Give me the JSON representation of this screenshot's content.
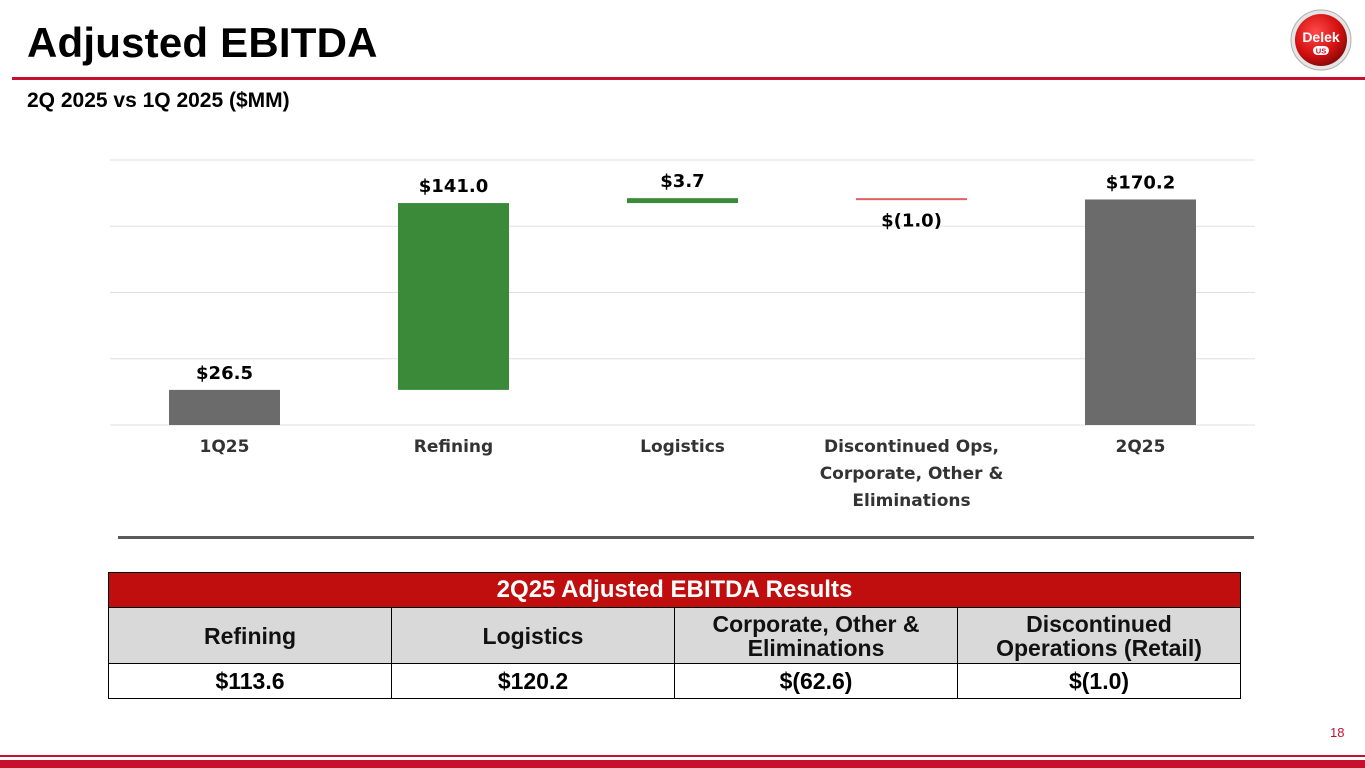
{
  "header": {
    "title": "Adjusted EBITDA",
    "subtitle": "2Q 2025 vs 1Q 2025 ($MM)",
    "logo_text": "Delek",
    "logo_subtext": "US"
  },
  "chart_data": {
    "type": "waterfall",
    "categories": [
      "1Q25",
      "Refining",
      "Logistics",
      "Discontinued Ops, Corporate, Other & Eliminations",
      "2Q25"
    ],
    "category_lines": [
      [
        "1Q25"
      ],
      [
        "Refining"
      ],
      [
        "Logistics"
      ],
      [
        "Discontinued Ops,",
        "Corporate, Other &",
        "Eliminations"
      ],
      [
        "2Q25"
      ]
    ],
    "values": [
      26.5,
      141.0,
      3.7,
      -1.0,
      170.2
    ],
    "kinds": [
      "total",
      "increase",
      "increase",
      "decrease",
      "total"
    ],
    "labels": [
      "$26.5",
      "$141.0",
      "$3.7",
      "$(1.0)",
      "$170.2"
    ],
    "ylim": [
      0,
      200
    ],
    "grid": true,
    "colors": {
      "total": "#6b6b6b",
      "increase": "#3a8a3a",
      "decrease": "#e06060"
    }
  },
  "results_table": {
    "title": "2Q25 Adjusted EBITDA Results",
    "columns": [
      {
        "heading": [
          "Refining"
        ],
        "value": "$113.6"
      },
      {
        "heading": [
          "Logistics"
        ],
        "value": "$120.2"
      },
      {
        "heading": [
          "Corporate, Other &",
          "Eliminations"
        ],
        "value": "$(62.6)"
      },
      {
        "heading": [
          "Discontinued",
          "Operations (Retail)"
        ],
        "value": "$(1.0)"
      }
    ]
  },
  "footer": {
    "page_number": "18"
  },
  "colors": {
    "brand_red": "#c8102e",
    "table_header": "#c00d0d",
    "table_subheader": "#d9d9d9"
  }
}
